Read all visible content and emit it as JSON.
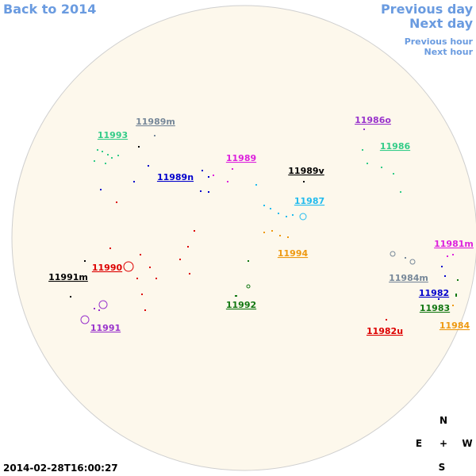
{
  "nav": {
    "back": "Back to 2014",
    "previous_day": "Previous day",
    "next_day": "Next day",
    "previous_hour": "Previous hour",
    "next_hour": "Next hour"
  },
  "regions": [
    "11989m",
    "11993",
    "11989",
    "11989n",
    "11989v",
    "11986o",
    "11986",
    "11987",
    "11994",
    "11990",
    "11991m",
    "11991",
    "11992",
    "11981m",
    "11984m",
    "11982",
    "11983",
    "11984",
    "11982u"
  ],
  "compass": {
    "north": "N",
    "east": "E",
    "center": "+",
    "west": "W",
    "south": "S"
  },
  "timestamp": "2014-02-28T16:00:27"
}
